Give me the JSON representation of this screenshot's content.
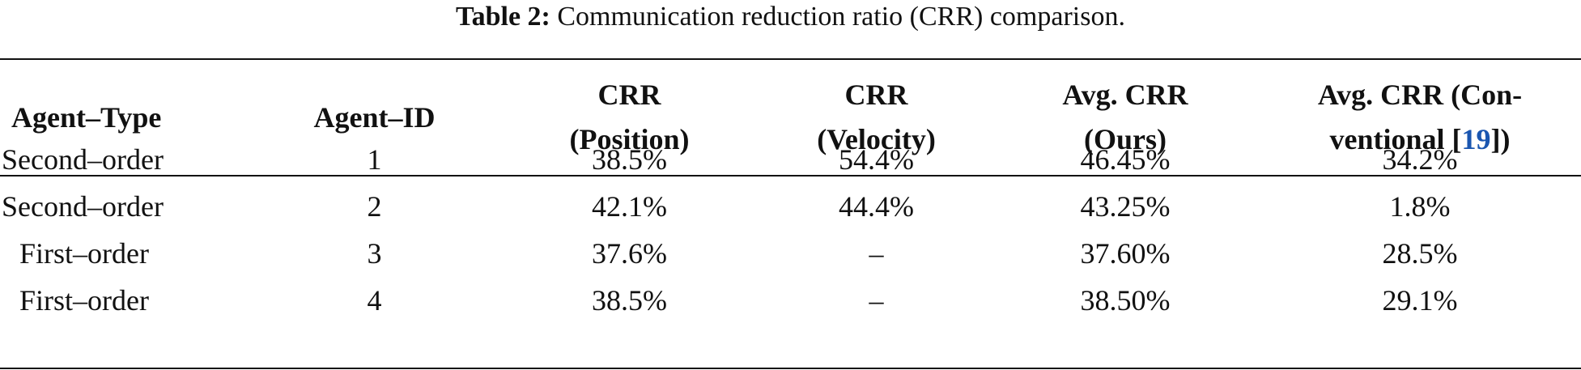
{
  "caption": {
    "label": "Table 2:",
    "text": "Communication reduction ratio (CRR) comparison."
  },
  "header": {
    "agent_type": "Agent–Type",
    "agent_id": "Agent–ID",
    "crr_position": [
      "CRR",
      "(Position)"
    ],
    "crr_velocity": [
      "CRR",
      "(Velocity)"
    ],
    "avg_crr_ours": [
      "Avg. CRR",
      "(Ours)"
    ],
    "avg_crr_conventional": {
      "line1": "Avg. CRR (Con-",
      "line2_prefix": "ventional [",
      "ref": "19",
      "line2_suffix": "])"
    }
  },
  "rows": [
    {
      "agent_type": "Second–order",
      "agent_id": "1",
      "crr_position": "38.5%",
      "crr_velocity": "54.4%",
      "avg_ours": "46.45%",
      "avg_conventional": "34.2%"
    },
    {
      "agent_type": "Second–order",
      "agent_id": "2",
      "crr_position": "42.1%",
      "crr_velocity": "44.4%",
      "avg_ours": "43.25%",
      "avg_conventional": "1.8%"
    },
    {
      "agent_type": "First–order",
      "agent_id": "3",
      "crr_position": "37.6%",
      "crr_velocity": "–",
      "avg_ours": "37.60%",
      "avg_conventional": "28.5%"
    },
    {
      "agent_type": "First–order",
      "agent_id": "4",
      "crr_position": "38.5%",
      "crr_velocity": "–",
      "avg_ours": "38.50%",
      "avg_conventional": "29.1%"
    }
  ],
  "colors": {
    "text": "#111111",
    "reference_link": "#1a56b0",
    "background": "#ffffff"
  }
}
